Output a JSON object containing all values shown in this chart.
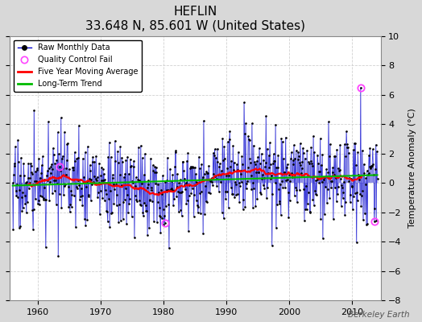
{
  "title": "HEFLIN",
  "subtitle": "33.648 N, 85.601 W (United States)",
  "ylabel": "Temperature Anomaly (°C)",
  "watermark": "Berkeley Earth",
  "year_start": 1956,
  "year_end": 2014,
  "ylim": [
    -8,
    10
  ],
  "yticks": [
    -8,
    -6,
    -4,
    -2,
    0,
    2,
    4,
    6,
    8,
    10
  ],
  "xticks": [
    1960,
    1970,
    1980,
    1990,
    2000,
    2010
  ],
  "raw_color": "#0000cc",
  "raw_alpha": 0.7,
  "moving_avg_color": "#ff0000",
  "trend_color": "#00bb00",
  "qc_color": "#ff44ff",
  "bg_color": "#d8d8d8",
  "plot_bg_color": "#ffffff",
  "grid_color": "#cccccc",
  "seed": 17,
  "noise_std": 1.5,
  "trend_slope": 0.018,
  "trend_intercept": -0.4,
  "qc_years": [
    1963.5,
    1980.2,
    2011.3,
    2013.5
  ],
  "qc_values": [
    1.1,
    -2.7,
    6.5,
    -2.6
  ],
  "moving_avg_window": 60
}
